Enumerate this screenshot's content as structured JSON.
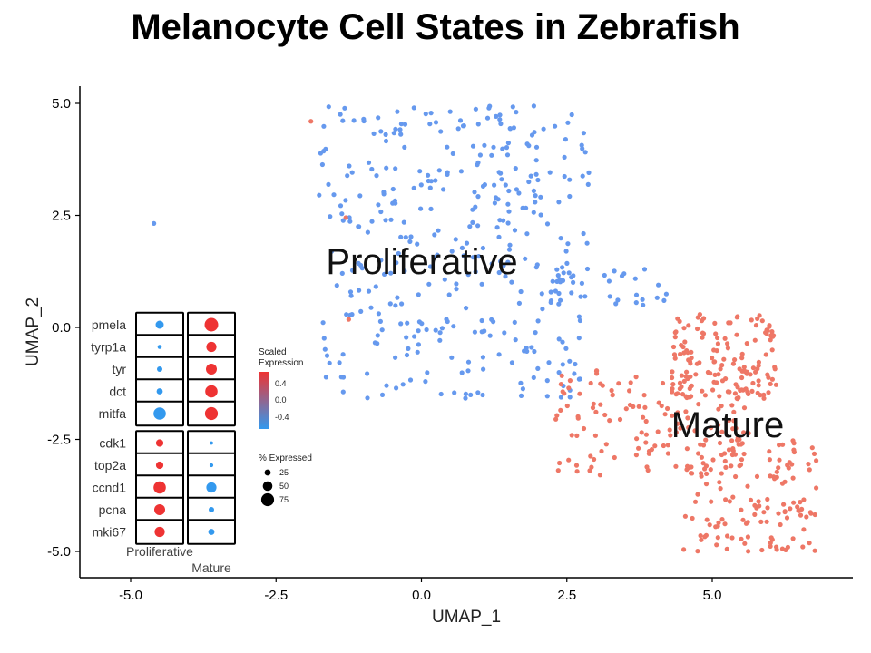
{
  "title": "Melanocyte Cell States in Zebrafish",
  "colors": {
    "proliferative": "#6699EE",
    "mature": "#EE7766",
    "high": "#EE3333",
    "low": "#3399EE"
  },
  "chart_data": {
    "type": "scatter",
    "xlabel": "UMAP_1",
    "ylabel": "UMAP_2",
    "xlim": [
      -5.8,
      7.5
    ],
    "ylim": [
      -5.55,
      5.2
    ],
    "xticks": [
      "-5.0",
      "-2.5",
      "0.0",
      "2.5",
      "5.0"
    ],
    "yticks": [
      "5.0",
      "2.5",
      "0.0",
      "-2.5",
      "-5.0"
    ],
    "xtick_values": [
      -5,
      -2.5,
      0,
      2.5,
      5
    ],
    "ytick_values": [
      5,
      2.5,
      0,
      -2.5,
      -5
    ],
    "annotations": [
      {
        "text": "Proliferative",
        "x": 0,
        "y": 1.45
      },
      {
        "text": "Mature",
        "x": 5.7,
        "y": -2.2
      }
    ],
    "clusters": [
      {
        "name": "Proliferative",
        "color": "#6699EE",
        "approx_points": 560,
        "regions": [
          {
            "x": [
              -1.8,
              2.9
            ],
            "y": [
              2.0,
              4.95
            ]
          },
          {
            "x": [
              -1.7,
              2.9
            ],
            "y": [
              -1.6,
              2.0
            ]
          },
          {
            "x": [
              2.2,
              4.4
            ],
            "y": [
              0.5,
              1.4
            ]
          }
        ]
      },
      {
        "name": "Mature",
        "color": "#EE7766",
        "approx_points": 420,
        "regions": [
          {
            "x": [
              2.3,
              5.7
            ],
            "y": [
              -3.3,
              -0.9
            ]
          },
          {
            "x": [
              4.3,
              6.1
            ],
            "y": [
              -1.6,
              0.3
            ]
          },
          {
            "x": [
              4.5,
              6.8
            ],
            "y": [
              -5.0,
              -2.5
            ]
          }
        ]
      }
    ],
    "outliers": [
      {
        "x": -4.6,
        "y": 2.32,
        "cluster": "Proliferative"
      },
      {
        "x": -1.3,
        "y": 2.45,
        "cluster": "Mature"
      },
      {
        "x": -1.25,
        "y": 0.18,
        "cluster": "Mature"
      },
      {
        "x": -1.9,
        "y": 4.6,
        "cluster": "Mature"
      }
    ],
    "inset_dotplot": {
      "groups": [
        "Proliferative",
        "Mature"
      ],
      "genes": [
        "pmela",
        "tyrp1a",
        "tyr",
        "dct",
        "mitfa",
        "cdk1",
        "top2a",
        "ccnd1",
        "pcna",
        "mki67"
      ],
      "pct_expressed": [
        [
          40,
          80
        ],
        [
          10,
          55
        ],
        [
          20,
          60
        ],
        [
          25,
          70
        ],
        [
          70,
          75
        ],
        [
          35,
          5
        ],
        [
          35,
          8
        ],
        [
          70,
          55
        ],
        [
          60,
          20
        ],
        [
          55,
          25
        ]
      ],
      "scaled_expression": [
        [
          -0.5,
          0.5
        ],
        [
          -0.5,
          0.5
        ],
        [
          -0.5,
          0.5
        ],
        [
          -0.5,
          0.5
        ],
        [
          -0.5,
          0.5
        ],
        [
          0.5,
          -0.5
        ],
        [
          0.5,
          -0.5
        ],
        [
          0.5,
          -0.5
        ],
        [
          0.5,
          -0.5
        ],
        [
          0.5,
          -0.5
        ]
      ]
    },
    "legend_color": {
      "title_line1": "Scaled",
      "title_line2": "Expression",
      "ticks": [
        "0.4",
        "0.0",
        "-0.4"
      ]
    },
    "legend_size": {
      "title": "% Expressed",
      "labels": [
        "25",
        "50",
        "75"
      ],
      "values": [
        25,
        50,
        75
      ]
    }
  }
}
